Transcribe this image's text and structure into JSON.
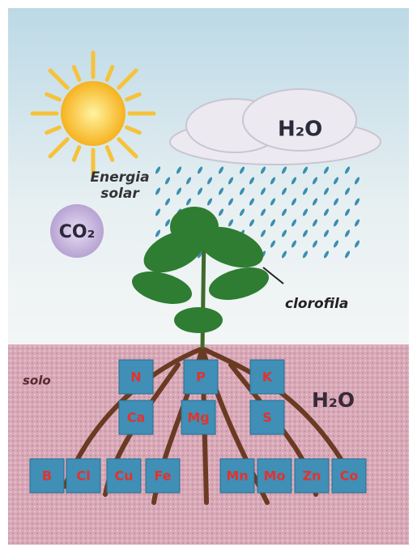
{
  "labels": {
    "sun": [
      "Energia",
      "solar"
    ],
    "cloud": "H₂O",
    "co2": "CO₂",
    "chlorophyll": "clorofila",
    "soil": "solo",
    "soil_water": "H₂O"
  },
  "nutrients": {
    "top": [
      "N",
      "P",
      "K"
    ],
    "middle": [
      "Ca",
      "Mg",
      "S"
    ],
    "bottom": [
      "B",
      "Cl",
      "Cu",
      "Fe",
      "Mn",
      "Mo",
      "Zn",
      "Co"
    ]
  }
}
